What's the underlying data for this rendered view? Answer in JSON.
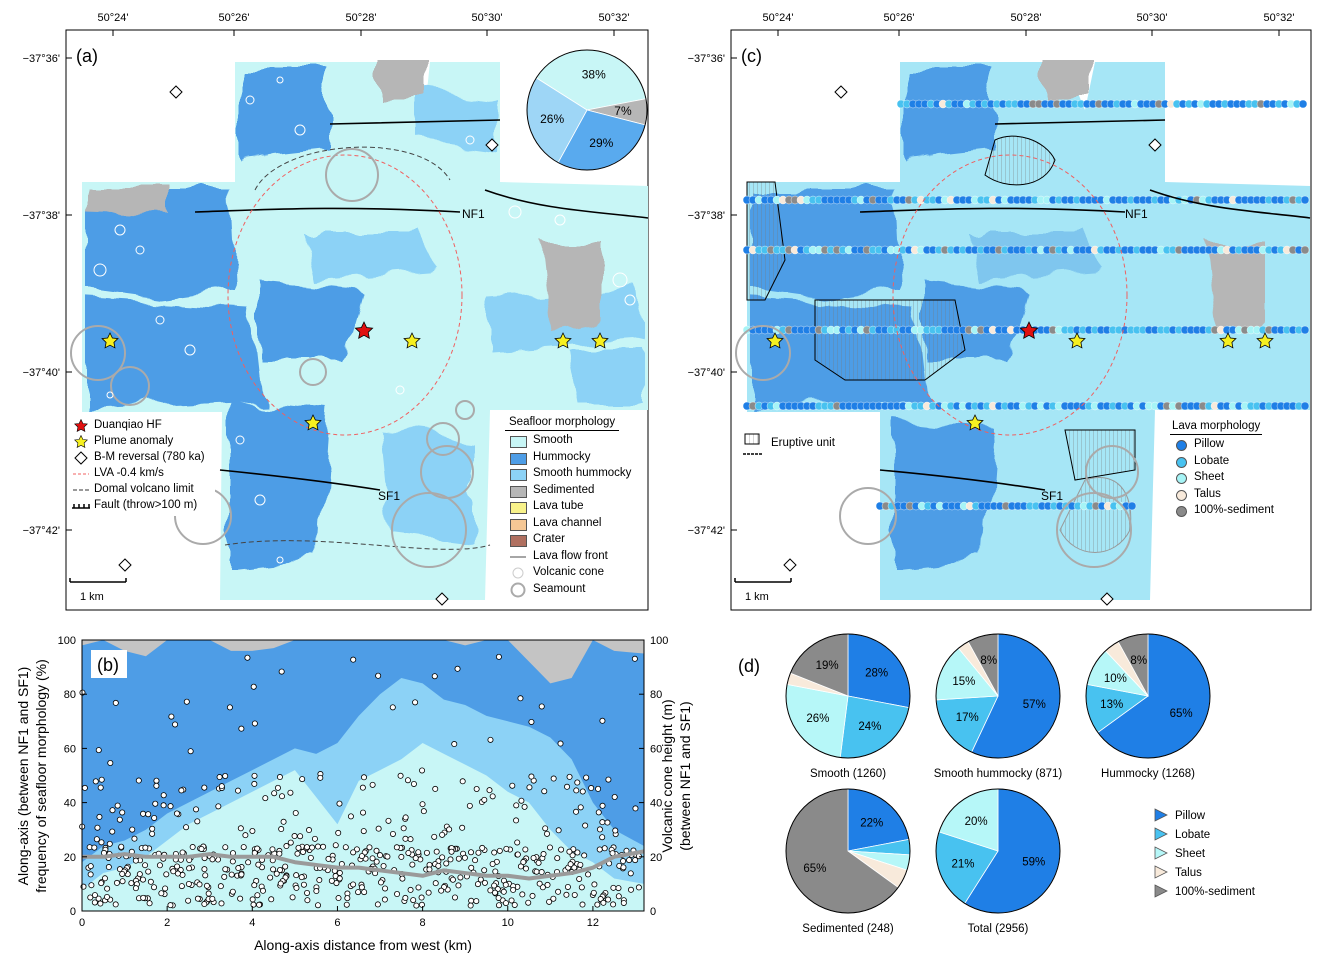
{
  "panel_a": {
    "label": "(a)",
    "lon_ticks": [
      "50°24'",
      "50°26'",
      "50°28'",
      "50°30'",
      "50°32'"
    ],
    "lat_ticks": [
      "-37°36'",
      "-37°38'",
      "-37°40'",
      "-37°42'"
    ],
    "pie": {
      "values": [
        38,
        7,
        29,
        26
      ],
      "labels": [
        "38%",
        "7%",
        "29%",
        "26%"
      ],
      "colors": [
        "#c8f6f6",
        "#b6b6b6",
        "#59aaee",
        "#9ed6f6"
      ]
    },
    "fault_labels": {
      "nf1": "NF1",
      "sf1": "SF1"
    },
    "scale_bar": "1 km",
    "legend_left": [
      {
        "symbol": "red-star",
        "label": "Duanqiao HF"
      },
      {
        "symbol": "yellow-star",
        "label": "Plume anomaly"
      },
      {
        "symbol": "diamond",
        "label": "B-M reversal (780 ka)"
      },
      {
        "symbol": "red-dashed",
        "label": "LVA -0.4 km/s"
      },
      {
        "symbol": "black-dashed",
        "label": "Domal volcano limit"
      },
      {
        "symbol": "fault",
        "label": "Fault (throw>100 m)"
      }
    ],
    "legend_right": {
      "title": "Seafloor morphology",
      "items": [
        {
          "label": "Smooth",
          "color": "#c8f6f6"
        },
        {
          "label": "Hummocky",
          "color": "#4e9de6"
        },
        {
          "label": "Smooth hummocky",
          "color": "#8cd2f6"
        },
        {
          "label": "Sedimented",
          "color": "#b6b6b6"
        },
        {
          "label": "Lava tube",
          "color": "#f8f28a"
        },
        {
          "label": "Lava channel",
          "color": "#f5c795"
        },
        {
          "label": "Crater",
          "color": "#b07060"
        },
        {
          "label": "Lava flow front",
          "color": "line"
        },
        {
          "label": "Volcanic cone",
          "color": "cone"
        },
        {
          "label": "Seamount",
          "color": "seamount"
        }
      ]
    }
  },
  "panel_c": {
    "label": "(c)",
    "lon_ticks": [
      "50°24'",
      "50°26'",
      "50°28'",
      "50°30'",
      "50°32'"
    ],
    "lat_ticks": [
      "-37°36'",
      "-37°38'",
      "-37°40'",
      "-37°42'"
    ],
    "fault_labels": {
      "nf1": "NF1",
      "sf1": "SF1"
    },
    "scale_bar": "1 km",
    "eruptive_unit": "Eruptive unit",
    "legend": {
      "title": "Lava morphology",
      "items": [
        {
          "label": "Pillow",
          "color": "#1f7fe6"
        },
        {
          "label": "Lobate",
          "color": "#48c2f0"
        },
        {
          "label": "Sheet",
          "color": "#a6f4f6"
        },
        {
          "label": "Talus",
          "color": "#f8eadb"
        },
        {
          "label": "100%-sediment",
          "color": "#8a8a8a"
        }
      ]
    }
  },
  "panel_b": {
    "label": "(b)",
    "chart_data": {
      "type": "area",
      "xlabel": "Along-axis distance from west (km)",
      "ylabel_left": [
        "Along-axis (between NF1 and SF1)",
        "frequency of seafloor morphology (%)"
      ],
      "ylabel_right": [
        "Volcanic cone height (m)",
        "(between NF1 and SF1)"
      ],
      "xlim": [
        0,
        13.2
      ],
      "ylim": [
        0,
        100
      ],
      "x_ticks": [
        "0",
        "2",
        "4",
        "6",
        "8",
        "10",
        "12"
      ],
      "y_ticks": [
        "0",
        "20",
        "40",
        "60",
        "80",
        "100"
      ],
      "y2_ticks": [
        "0",
        "20",
        "40",
        "60",
        "80",
        "100"
      ],
      "x": [
        0,
        0.5,
        1,
        1.5,
        2,
        2.5,
        3,
        3.5,
        4,
        4.5,
        5,
        5.5,
        6,
        6.5,
        7,
        7.5,
        8,
        8.5,
        9,
        9.5,
        10,
        10.5,
        11,
        11.5,
        12,
        12.5,
        13.2
      ],
      "series": [
        {
          "color": "#c8f6f6",
          "values": [
            8,
            14,
            16,
            20,
            26,
            32,
            36,
            40,
            44,
            48,
            52,
            42,
            32,
            48,
            52,
            56,
            62,
            58,
            54,
            50,
            44,
            40,
            30,
            22,
            18,
            12,
            10
          ]
        },
        {
          "color": "#8cd2f6",
          "values": [
            18,
            24,
            26,
            30,
            36,
            40,
            44,
            48,
            52,
            56,
            60,
            58,
            62,
            72,
            80,
            86,
            84,
            78,
            76,
            72,
            70,
            68,
            64,
            56,
            40,
            30,
            24
          ]
        },
        {
          "color": "#4e9de6",
          "values": [
            98,
            100,
            96,
            94,
            100,
            100,
            100,
            96,
            96,
            97,
            100,
            100,
            100,
            100,
            100,
            100,
            100,
            100,
            98,
            100,
            100,
            92,
            84,
            86,
            100,
            96,
            95
          ]
        },
        {
          "color": "#c4c4c4",
          "values": [
            100,
            100,
            100,
            100,
            100,
            100,
            100,
            100,
            100,
            100,
            100,
            100,
            100,
            100,
            100,
            100,
            100,
            100,
            100,
            100,
            100,
            100,
            100,
            100,
            100,
            100,
            100
          ]
        }
      ],
      "trend": {
        "name": "cone-height-mean",
        "values": [
          20,
          20,
          21,
          20,
          20,
          20,
          21,
          20,
          20,
          20,
          18,
          17,
          16,
          16,
          15,
          14,
          13,
          15,
          14,
          13,
          13,
          12,
          13,
          14,
          16,
          20,
          22
        ]
      }
    }
  },
  "panel_d": {
    "label": "(d)",
    "chart_data": [
      {
        "type": "pie",
        "title": "Smooth (1260)",
        "values": [
          28,
          24,
          26,
          3,
          19
        ],
        "labels": [
          "28%",
          "24%",
          "26%",
          "",
          "19%"
        ]
      },
      {
        "type": "pie",
        "title": "Smooth hummocky (871)",
        "values": [
          57,
          17,
          15,
          3,
          8
        ],
        "labels": [
          "57%",
          "17%",
          "15%",
          "",
          "8%"
        ]
      },
      {
        "type": "pie",
        "title": "Hummocky (1268)",
        "values": [
          65,
          13,
          10,
          4,
          8
        ],
        "labels": [
          "65%",
          "13%",
          "10%",
          "",
          "8%"
        ]
      },
      {
        "type": "pie",
        "title": "Sedimented (248)",
        "values": [
          22,
          4,
          4,
          5,
          65
        ],
        "labels": [
          "22%",
          "",
          "",
          "",
          "65%"
        ]
      },
      {
        "type": "pie",
        "title": "Total (2956)",
        "values": [
          59,
          21,
          20,
          0,
          0
        ],
        "labels": [
          "59%",
          "21%",
          "20%",
          "",
          ""
        ]
      }
    ],
    "slice_colors": [
      "#1f7fe6",
      "#48c2f0",
      "#b6f7f8",
      "#f8eadb",
      "#8a8a8a"
    ],
    "legend": [
      "Pillow",
      "Lobate",
      "Sheet",
      "Talus",
      "100%-sediment"
    ]
  }
}
